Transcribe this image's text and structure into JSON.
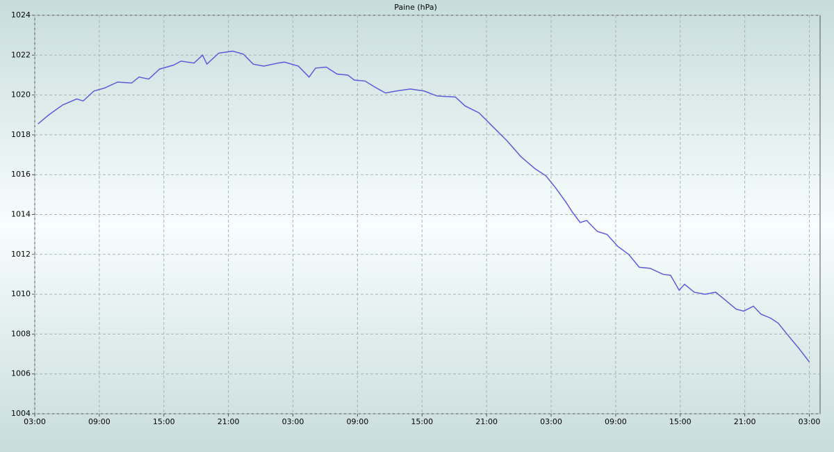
{
  "chart_data": {
    "type": "line",
    "title": "Paine (hPa)",
    "x": [
      0.3,
      1.3,
      2.6,
      3.9,
      4.5,
      5.5,
      6.5,
      7.7,
      9,
      9.7,
      10.6,
      11.6,
      12.9,
      13.6,
      14.8,
      15.6,
      16,
      17.1,
      18.4,
      19.4,
      20.3,
      21.3,
      22.6,
      23.2,
      24.5,
      25.5,
      26.1,
      27.1,
      28.1,
      29.1,
      29.7,
      30.7,
      31.6,
      32.6,
      33.6,
      34.9,
      36.2,
      37.4,
      39.1,
      40,
      41.3,
      42.6,
      43.9,
      45.2,
      46.5,
      47.5,
      48.4,
      49.4,
      50,
      50.7,
      51.3,
      52.3,
      53.2,
      54.2,
      55.2,
      56.2,
      57.2,
      58.4,
      59.1,
      59.9,
      60.4,
      61.3,
      62.3,
      63.3,
      64.2,
      65.2,
      65.9,
      66.8,
      67.5,
      68.4,
      69.1,
      70,
      71,
      72
    ],
    "series": [
      {
        "name": "Paine (hPa)",
        "color": "#5b5bdc",
        "values": [
          1018.55,
          1019.0,
          1019.5,
          1019.8,
          1019.7,
          1020.2,
          1020.35,
          1020.65,
          1020.6,
          1020.9,
          1020.8,
          1021.3,
          1021.5,
          1021.7,
          1021.6,
          1022.0,
          1021.55,
          1022.1,
          1022.2,
          1022.05,
          1021.55,
          1021.45,
          1021.6,
          1021.65,
          1021.45,
          1020.9,
          1021.35,
          1021.4,
          1021.05,
          1021.0,
          1020.75,
          1020.7,
          1020.4,
          1020.1,
          1020.2,
          1020.3,
          1020.2,
          1019.95,
          1019.9,
          1019.45,
          1019.1,
          1018.4,
          1017.7,
          1016.9,
          1016.3,
          1015.95,
          1015.35,
          1014.6,
          1014.1,
          1013.6,
          1013.7,
          1013.15,
          1013.0,
          1012.4,
          1012.0,
          1011.35,
          1011.3,
          1011.0,
          1010.95,
          1010.2,
          1010.5,
          1010.1,
          1010.0,
          1010.1,
          1009.7,
          1009.25,
          1009.15,
          1009.4,
          1009.0,
          1008.8,
          1008.55,
          1007.95,
          1007.3,
          1006.6
        ]
      }
    ],
    "xlim": [
      0,
      73
    ],
    "xticks": [
      {
        "value": 0,
        "label": "03:00"
      },
      {
        "value": 6,
        "label": "09:00"
      },
      {
        "value": 12,
        "label": "15:00"
      },
      {
        "value": 18,
        "label": "21:00"
      },
      {
        "value": 24,
        "label": "03:00"
      },
      {
        "value": 30,
        "label": "09:00"
      },
      {
        "value": 36,
        "label": "15:00"
      },
      {
        "value": 42,
        "label": "21:00"
      },
      {
        "value": 48,
        "label": "03:00"
      },
      {
        "value": 54,
        "label": "09:00"
      },
      {
        "value": 60,
        "label": "15:00"
      },
      {
        "value": 66,
        "label": "21:00"
      },
      {
        "value": 72,
        "label": "03:00"
      }
    ],
    "ylim": [
      1004,
      1024
    ],
    "yticks": [
      1004,
      1006,
      1008,
      1010,
      1012,
      1014,
      1016,
      1018,
      1020,
      1022,
      1024
    ],
    "grid": true
  }
}
